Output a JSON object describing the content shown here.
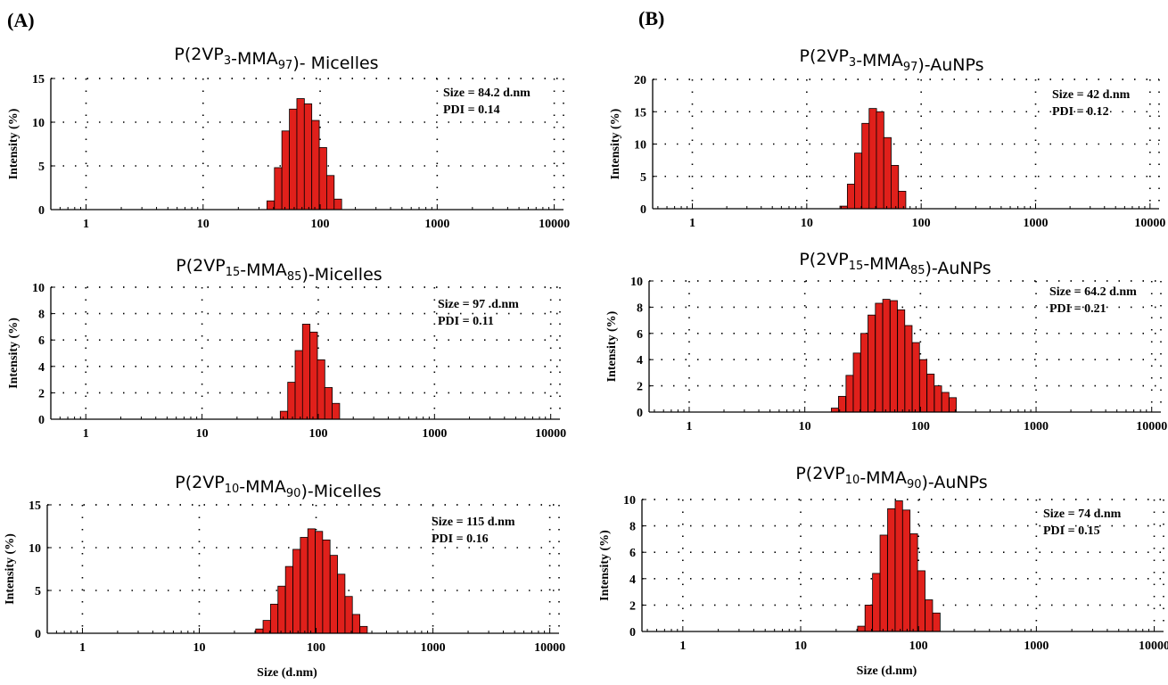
{
  "figure": {
    "panel_labels": [
      "(A)",
      "(B)"
    ],
    "x_axis_title": "Size (d.nm)",
    "y_axis_title": "Intensity (%)",
    "x_tick_labels": [
      "1",
      "10",
      "100",
      "1000",
      "10000"
    ],
    "colors": {
      "bar_fill": "#e0201b",
      "bar_edge": "#000000"
    }
  },
  "chart_data": [
    {
      "type": "bar",
      "panel": "(A)",
      "title": "P(2VP3-MMA97)- Micelles",
      "title_parts": [
        {
          "t": "P(2VP",
          "s": false
        },
        {
          "t": "3",
          "s": true
        },
        {
          "t": "-MMA",
          "s": false
        },
        {
          "t": "97",
          "s": true
        },
        {
          "t": ")- Micelles",
          "s": false
        }
      ],
      "annotation": [
        "Size = 84.2 d.nm",
        "PDI = 0.14"
      ],
      "xscale": "log",
      "xlim": [
        0.5,
        12000
      ],
      "ylim": [
        0,
        15
      ],
      "yticks": [
        0,
        5,
        10,
        15
      ],
      "ylabel": "Intensity (%)",
      "xlabel": "",
      "x_ticks": [
        1,
        10,
        100,
        1000,
        10000
      ],
      "bars": {
        "x": [
          37.8,
          43.8,
          50.7,
          58.8,
          68.1,
          78.8,
          91.3,
          105.7,
          122.4,
          141.8
        ],
        "values": [
          1.0,
          4.8,
          9.0,
          11.5,
          12.7,
          12.1,
          10.2,
          7.1,
          3.9,
          1.2
        ]
      }
    },
    {
      "type": "bar",
      "panel": "(A)",
      "title": "P(2VP15-MMA85)-Micelles",
      "title_parts": [
        {
          "t": "P(2VP",
          "s": false
        },
        {
          "t": "15",
          "s": true
        },
        {
          "t": "-MMA",
          "s": false
        },
        {
          "t": "85",
          "s": true
        },
        {
          "t": ")-Micelles",
          "s": false
        }
      ],
      "annotation": [
        "Size = 97 .d.nm",
        "PDI = 0.11"
      ],
      "xscale": "log",
      "xlim": [
        0.5,
        12000
      ],
      "ylim": [
        0,
        10
      ],
      "yticks": [
        0,
        2,
        4,
        6,
        8,
        10
      ],
      "ylabel": "Intensity (%)",
      "xlabel": "",
      "x_ticks": [
        1,
        10,
        100,
        1000,
        10000
      ],
      "bars": {
        "x": [
          50.7,
          58.8,
          68.1,
          78.8,
          91.3,
          105.7,
          122.4,
          141.8
        ],
        "values": [
          0.6,
          2.8,
          5.2,
          7.2,
          6.6,
          4.5,
          2.4,
          1.2
        ]
      }
    },
    {
      "type": "bar",
      "panel": "(A)",
      "title": "P(2VP10-MMA90)-Micelles",
      "title_parts": [
        {
          "t": "P(2VP",
          "s": false
        },
        {
          "t": "10",
          "s": true
        },
        {
          "t": "-MMA",
          "s": false
        },
        {
          "t": "90",
          "s": true
        },
        {
          "t": ")-Micelles",
          "s": false
        }
      ],
      "annotation": [
        "Size = 115 d.nm",
        "PDI = 0.16"
      ],
      "xscale": "log",
      "xlim": [
        0.5,
        12000
      ],
      "ylim": [
        0,
        15
      ],
      "yticks": [
        0,
        5,
        10,
        15
      ],
      "ylabel": "Intensity (%)",
      "xlabel": "Size (d.nm)",
      "x_ticks": [
        1,
        10,
        100,
        1000,
        10000
      ],
      "bars": {
        "x": [
          32.7,
          37.8,
          43.8,
          50.7,
          58.8,
          68.1,
          78.8,
          91.3,
          105.7,
          122.4,
          141.8,
          164.2,
          190.1,
          220.2,
          255.0
        ],
        "values": [
          0.5,
          1.5,
          3.4,
          5.5,
          7.8,
          9.8,
          11.2,
          12.2,
          11.9,
          10.9,
          9.1,
          6.9,
          4.3,
          2.2,
          0.8
        ]
      }
    },
    {
      "type": "bar",
      "panel": "(B)",
      "title": "P(2VP3-MMA97)-AuNPs",
      "title_parts": [
        {
          "t": "P(2VP",
          "s": false
        },
        {
          "t": "3",
          "s": true
        },
        {
          "t": "-MMA",
          "s": false
        },
        {
          "t": "97",
          "s": true
        },
        {
          "t": ")-AuNPs",
          "s": false
        }
      ],
      "annotation": [
        "Size = 42 d.nm",
        "PDI = 0.12"
      ],
      "xscale": "log",
      "xlim": [
        0.45,
        12000
      ],
      "ylim": [
        0,
        20
      ],
      "yticks": [
        0,
        5,
        10,
        15,
        20
      ],
      "ylabel": "Intensity (%)",
      "xlabel": "",
      "x_ticks": [
        1,
        10,
        100,
        1000,
        10000
      ],
      "bars": {
        "x": [
          21.0,
          24.4,
          28.2,
          32.7,
          37.8,
          43.8,
          50.7,
          58.8,
          68.1
        ],
        "values": [
          0.4,
          3.8,
          8.6,
          13.2,
          15.5,
          15.0,
          11.0,
          6.7,
          2.7
        ]
      }
    },
    {
      "type": "bar",
      "panel": "(B)",
      "title": "P(2VP15-MMA85)-AuNPs",
      "title_parts": [
        {
          "t": "P(2VP",
          "s": false
        },
        {
          "t": "15",
          "s": true
        },
        {
          "t": "-MMA",
          "s": false
        },
        {
          "t": "85",
          "s": true
        },
        {
          "t": ")-AuNPs",
          "s": false
        }
      ],
      "annotation": [
        "Size = 64.2 d.nm",
        "PDI = 0.21"
      ],
      "xscale": "log",
      "xlim": [
        0.45,
        12000
      ],
      "ylim": [
        0,
        10
      ],
      "yticks": [
        0,
        2,
        4,
        6,
        8,
        10
      ],
      "ylabel": "Intensity (%)",
      "xlabel": "",
      "x_ticks": [
        1,
        10,
        100,
        1000,
        10000
      ],
      "bars": {
        "x": [
          18.2,
          21.0,
          24.4,
          28.2,
          32.7,
          37.8,
          43.8,
          50.7,
          58.8,
          68.1,
          78.8,
          91.3,
          105.7,
          122.4,
          141.8,
          164.2,
          190.1
        ],
        "values": [
          0.3,
          1.2,
          2.8,
          4.5,
          6.0,
          7.4,
          8.3,
          8.6,
          8.5,
          7.8,
          6.6,
          5.3,
          4.0,
          2.9,
          2.0,
          1.5,
          1.1
        ]
      }
    },
    {
      "type": "bar",
      "panel": "(B)",
      "title": "P(2VP10-MMA90)-AuNPs",
      "title_parts": [
        {
          "t": "P(2VP",
          "s": false
        },
        {
          "t": "10",
          "s": true
        },
        {
          "t": "-MMA",
          "s": false
        },
        {
          "t": "90",
          "s": true
        },
        {
          "t": ")-AuNPs",
          "s": false
        }
      ],
      "annotation": [
        "Size = 74 d.nm",
        "PDI = 0.15"
      ],
      "xscale": "log",
      "xlim": [
        0.45,
        12000
      ],
      "ylim": [
        0,
        10
      ],
      "yticks": [
        0,
        2,
        4,
        6,
        8,
        10
      ],
      "ylabel": "Intensity (%)",
      "xlabel": "Size (d.nm)",
      "x_ticks": [
        1,
        10,
        100,
        1000,
        10000
      ],
      "bars": {
        "x": [
          32.7,
          37.8,
          43.8,
          50.7,
          58.8,
          68.1,
          78.8,
          91.3,
          105.7,
          122.4,
          141.8
        ],
        "values": [
          0.4,
          2.0,
          4.4,
          7.3,
          9.3,
          9.9,
          9.2,
          7.4,
          4.6,
          2.4,
          1.4
        ]
      }
    }
  ]
}
